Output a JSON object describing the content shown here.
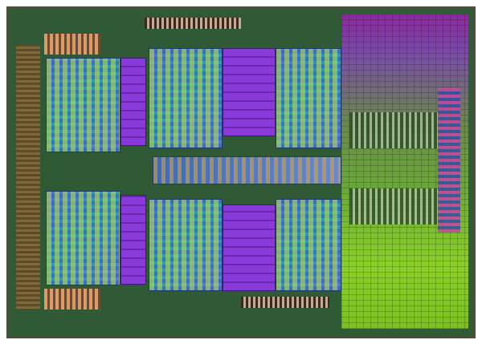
{
  "image": {
    "subject": "processor-die",
    "colors": {
      "substrate": "#2f5a35",
      "core_logic": "#4c6fd6",
      "l2_cache": "#8a3ad8",
      "l3_cache_top": "#8a2a9a",
      "l3_cache_bottom": "#8ad028",
      "io_pads": "#d89a66"
    }
  }
}
